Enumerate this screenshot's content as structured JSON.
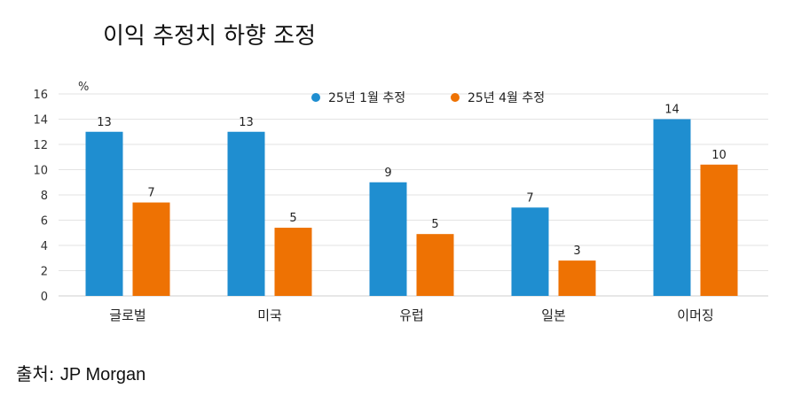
{
  "title": "이익 추정치 하향 조정",
  "source": {
    "label": "출처:",
    "name": "JP Morgan"
  },
  "chart_data": {
    "type": "bar",
    "categories": [
      "글로벌",
      "미국",
      "유럽",
      "일본",
      "이머징"
    ],
    "series": [
      {
        "name": "25년 1월 추정",
        "values": [
          13,
          13,
          9,
          7,
          14
        ],
        "labels": [
          "13",
          "13",
          "9",
          "7",
          "14"
        ],
        "color": "#1f8ed0"
      },
      {
        "name": "25년 4월 추정",
        "values": [
          7.4,
          5.4,
          4.9,
          2.8,
          10.4
        ],
        "labels": [
          "7",
          "5",
          "5",
          "3",
          "10"
        ],
        "color": "#ee7203"
      }
    ],
    "ylabel": "%",
    "ylim": [
      0,
      16
    ],
    "yticks": [
      0,
      2,
      4,
      6,
      8,
      10,
      12,
      14,
      16
    ],
    "grid": true,
    "legend_position": "top-center"
  }
}
